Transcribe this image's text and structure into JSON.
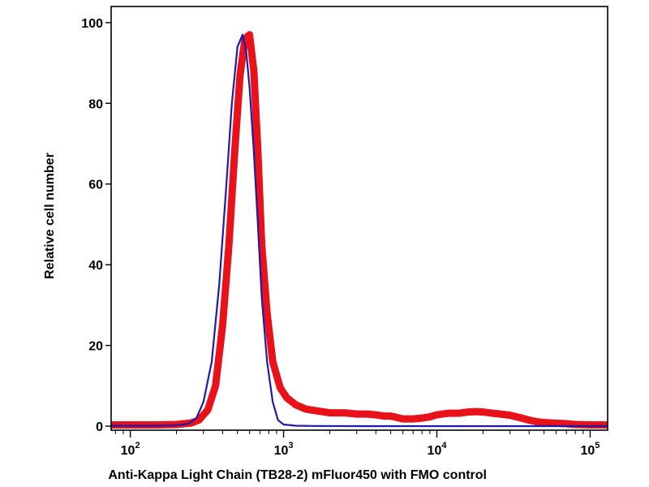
{
  "chart_data": {
    "type": "line",
    "title": "",
    "xlabel": "Anti-Kappa Light Chain (TB28-2) mFluor450 with FMO control",
    "ylabel": "Relative cell number",
    "x_scale": "log",
    "xlim": [
      75,
      130000
    ],
    "ylim": [
      -1,
      104
    ],
    "grid": false,
    "x_ticks": [
      {
        "base": "10",
        "exp": "2",
        "value": 100
      },
      {
        "base": "10",
        "exp": "3",
        "value": 1000
      },
      {
        "base": "10",
        "exp": "4",
        "value": 10000
      },
      {
        "base": "10",
        "exp": "5",
        "value": 100000
      }
    ],
    "y_ticks": [
      0,
      20,
      40,
      60,
      80,
      100
    ],
    "series": [
      {
        "color": "#e8121b",
        "width": 9,
        "x": [
          75,
          150,
          200,
          250,
          280,
          320,
          360,
          400,
          440,
          480,
          520,
          560,
          600,
          640,
          680,
          720,
          780,
          850,
          950,
          1050,
          1200,
          1400,
          1700,
          2000,
          2500,
          3000,
          3500,
          4000,
          4500,
          5000,
          6000,
          7000,
          8000,
          9000,
          10000,
          12000,
          14000,
          16000,
          18000,
          20000,
          23000,
          26000,
          30000,
          35000,
          40000,
          45000,
          50000,
          60000,
          70000,
          80000,
          100000,
          130000
        ],
        "values": [
          0.3,
          0.3,
          0.4,
          0.8,
          1.5,
          4,
          10,
          25,
          45,
          68,
          87,
          96,
          97,
          88,
          68,
          45,
          28,
          16,
          9.5,
          7,
          5.3,
          4.2,
          3.7,
          3.3,
          3.3,
          3,
          3,
          2.8,
          2.5,
          2.5,
          1.8,
          1.8,
          2,
          2.3,
          2.8,
          3.2,
          3.2,
          3.5,
          3.6,
          3.5,
          3.2,
          3,
          2.7,
          2.1,
          1.5,
          1.1,
          0.9,
          0.7,
          0.6,
          0.4,
          0.3,
          0.3
        ]
      },
      {
        "color": "#1f1aa8",
        "width": 2.2,
        "x": [
          75,
          150,
          200,
          240,
          270,
          300,
          340,
          380,
          420,
          460,
          500,
          540,
          570,
          600,
          640,
          680,
          720,
          780,
          850,
          920,
          1000,
          1200,
          1600,
          3000,
          10000,
          130000
        ],
        "values": [
          0.1,
          0.1,
          0.2,
          0.6,
          2,
          6,
          16,
          35,
          58,
          80,
          94,
          97,
          93,
          84,
          68,
          50,
          32,
          16,
          6,
          1.5,
          0.4,
          0.1,
          0.05,
          0,
          0,
          0
        ]
      }
    ]
  }
}
